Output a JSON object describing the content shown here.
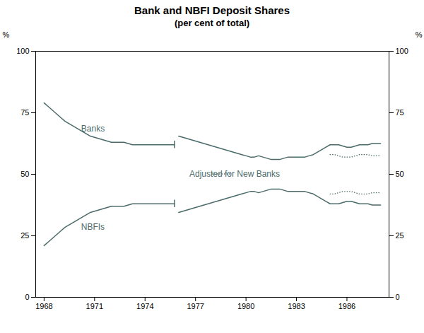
{
  "chart_data": {
    "type": "line",
    "title": "Bank and NBFI Deposit Shares",
    "subtitle": "(per cent of total)",
    "color": "#4a6b6a",
    "xlim": [
      1967.5,
      1988.5
    ],
    "xticks": [
      1968,
      1971,
      1974,
      1977,
      1980,
      1983,
      1986
    ],
    "ylim": [
      0,
      100
    ],
    "yticks": [
      0,
      25,
      50,
      75,
      100
    ],
    "ylabel": "%",
    "y2lim": [
      0,
      100
    ],
    "y2ticks": [
      0,
      25,
      50,
      75,
      100
    ],
    "y2label": "%",
    "legend": "center",
    "grid": false,
    "x": [
      1968.0,
      1968.25,
      1968.5,
      1968.75,
      1969.0,
      1969.25,
      1969.5,
      1969.75,
      1970.0,
      1970.25,
      1970.5,
      1970.75,
      1971.0,
      1971.25,
      1971.5,
      1971.75,
      1972.0,
      1972.25,
      1972.5,
      1972.75,
      1973.0,
      1973.25,
      1973.5,
      1973.75,
      1974.0,
      1974.25,
      1974.5,
      1974.75,
      1975.0,
      1975.25,
      1975.5,
      1975.75,
      null,
      1976.0,
      1976.25,
      1976.5,
      1976.75,
      1977.0,
      1977.25,
      1977.5,
      1977.75,
      1978.0,
      1978.25,
      1978.5,
      1978.75,
      1979.0,
      1979.25,
      1979.5,
      1979.75,
      1980.0,
      1980.25,
      1980.5,
      1980.75,
      1981.0,
      1981.25,
      1981.5,
      1981.75,
      1982.0,
      1982.25,
      1982.5,
      1982.75,
      1983.0,
      1983.25,
      1983.5,
      1983.75,
      1984.0,
      1984.25,
      1984.5,
      1984.75,
      1985.0,
      1985.25,
      1985.5,
      1985.75,
      1986.0,
      1986.25,
      1986.5,
      1986.75,
      1987.0,
      1987.25,
      1987.5,
      1987.75,
      1988.0
    ],
    "series": [
      {
        "name": "Banks",
        "line_style": "solid",
        "label_x": 1970.2,
        "label_y": 67.5,
        "values": [
          79.0,
          77.5,
          76.0,
          74.5,
          73.0,
          71.5,
          70.5,
          69.5,
          68.5,
          67.5,
          66.5,
          65.5,
          65.0,
          64.5,
          64.0,
          63.5,
          63.0,
          63.0,
          63.0,
          63.0,
          62.5,
          62.0,
          62.0,
          62.0,
          62.0,
          62.0,
          62.0,
          62.0,
          62.0,
          62.0,
          62.0,
          62.0,
          null,
          65.5,
          65.0,
          64.5,
          64.0,
          63.5,
          63.0,
          62.5,
          62.0,
          61.5,
          61.0,
          60.5,
          60.0,
          59.5,
          59.0,
          58.5,
          58.0,
          57.5,
          57.0,
          57.0,
          57.5,
          57.0,
          56.5,
          56.0,
          56.0,
          56.0,
          56.5,
          57.0,
          57.0,
          57.0,
          57.0,
          57.0,
          57.5,
          58.0,
          59.0,
          60.0,
          61.0,
          62.0,
          62.0,
          62.0,
          61.5,
          61.0,
          61.0,
          61.5,
          62.0,
          62.0,
          62.0,
          62.5,
          62.5,
          62.5
        ]
      },
      {
        "name": "NBFIs",
        "line_style": "solid",
        "label_x": 1970.2,
        "label_y": 27.5,
        "values": [
          21.0,
          22.5,
          24.0,
          25.5,
          27.0,
          28.5,
          29.5,
          30.5,
          31.5,
          32.5,
          33.5,
          34.5,
          35.0,
          35.5,
          36.0,
          36.5,
          37.0,
          37.0,
          37.0,
          37.0,
          37.5,
          38.0,
          38.0,
          38.0,
          38.0,
          38.0,
          38.0,
          38.0,
          38.0,
          38.0,
          38.0,
          38.0,
          null,
          34.5,
          35.0,
          35.5,
          36.0,
          36.5,
          37.0,
          37.5,
          38.0,
          38.5,
          39.0,
          39.5,
          40.0,
          40.5,
          41.0,
          41.5,
          42.0,
          42.5,
          43.0,
          43.0,
          42.5,
          43.0,
          43.5,
          44.0,
          44.0,
          44.0,
          43.5,
          43.0,
          43.0,
          43.0,
          43.0,
          43.0,
          42.5,
          42.0,
          41.0,
          40.0,
          39.0,
          38.0,
          38.0,
          38.0,
          38.5,
          39.0,
          39.0,
          38.5,
          38.0,
          38.0,
          38.0,
          37.5,
          37.5,
          37.5
        ]
      },
      {
        "name": "Adjusted for New Banks",
        "line_style": "dotted",
        "values": [
          null,
          null,
          null,
          null,
          null,
          null,
          null,
          null,
          null,
          null,
          null,
          null,
          null,
          null,
          null,
          null,
          null,
          null,
          null,
          null,
          null,
          null,
          null,
          null,
          null,
          null,
          null,
          null,
          null,
          null,
          null,
          null,
          null,
          null,
          null,
          null,
          null,
          null,
          null,
          null,
          null,
          null,
          null,
          null,
          null,
          null,
          null,
          null,
          null,
          null,
          null,
          null,
          null,
          null,
          null,
          null,
          null,
          null,
          null,
          null,
          null,
          null,
          null,
          null,
          null,
          null,
          null,
          null,
          null,
          58.0,
          58.0,
          57.5,
          57.0,
          57.0,
          57.0,
          57.5,
          58.0,
          58.0,
          58.0,
          57.5,
          57.5,
          57.5
        ]
      },
      {
        "name": "Adjusted for New Banks",
        "line_style": "dotted",
        "values": [
          null,
          null,
          null,
          null,
          null,
          null,
          null,
          null,
          null,
          null,
          null,
          null,
          null,
          null,
          null,
          null,
          null,
          null,
          null,
          null,
          null,
          null,
          null,
          null,
          null,
          null,
          null,
          null,
          null,
          null,
          null,
          null,
          null,
          null,
          null,
          null,
          null,
          null,
          null,
          null,
          null,
          null,
          null,
          null,
          null,
          null,
          null,
          null,
          null,
          null,
          null,
          null,
          null,
          null,
          null,
          null,
          null,
          null,
          null,
          null,
          null,
          null,
          null,
          null,
          null,
          null,
          null,
          null,
          null,
          42.0,
          42.0,
          42.5,
          43.0,
          43.0,
          43.0,
          42.5,
          42.0,
          42.0,
          42.0,
          42.5,
          42.5,
          42.5
        ]
      }
    ],
    "breaks": [
      {
        "x": 1975.75,
        "y": [
          60.5,
          63.5
        ]
      },
      {
        "x": 1975.75,
        "y": [
          36.5,
          39.5
        ]
      }
    ]
  }
}
